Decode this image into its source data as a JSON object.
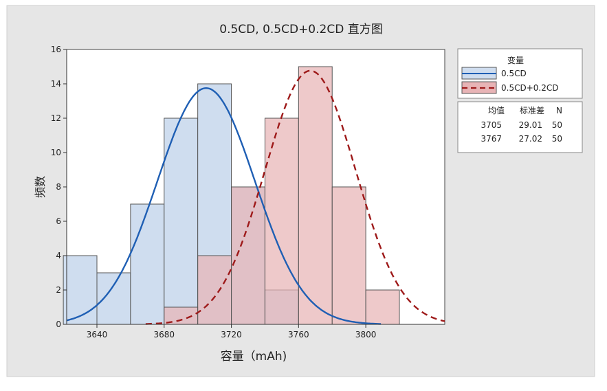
{
  "chart_data": {
    "type": "bar",
    "title": "0.5CD, 0.5CD+0.2CD 直方图",
    "xlabel": "容量（mAh)",
    "ylabel": "频数",
    "xlim": [
      3622,
      3847
    ],
    "ylim": [
      0,
      16
    ],
    "xticks": [
      3640,
      3680,
      3720,
      3760,
      3800
    ],
    "yticks": [
      0,
      2,
      4,
      6,
      8,
      10,
      12,
      14,
      16
    ],
    "bin_width": 20,
    "series": [
      {
        "name": "0.5CD",
        "color": "#1f5fb4",
        "fill": "#cfddef",
        "line_style": "solid",
        "bins": [
          {
            "x": 3630,
            "count": 4
          },
          {
            "x": 3650,
            "count": 3
          },
          {
            "x": 3670,
            "count": 7
          },
          {
            "x": 3690,
            "count": 12
          },
          {
            "x": 3710,
            "count": 14
          },
          {
            "x": 3730,
            "count": 8
          },
          {
            "x": 3750,
            "count": 2
          }
        ],
        "mean": 3705,
        "stdev": 29.01,
        "n": 50
      },
      {
        "name": "0.5CD+0.2CD",
        "color": "#9e1a1a",
        "fill": "#e8b4b6",
        "line_style": "dashed",
        "bins": [
          {
            "x": 3690,
            "count": 1
          },
          {
            "x": 3710,
            "count": 4
          },
          {
            "x": 3730,
            "count": 8
          },
          {
            "x": 3750,
            "count": 12
          },
          {
            "x": 3770,
            "count": 15
          },
          {
            "x": 3790,
            "count": 8
          },
          {
            "x": 3810,
            "count": 2
          }
        ],
        "mean": 3767,
        "stdev": 27.02,
        "n": 50
      }
    ],
    "legend": {
      "title": "变量",
      "position": "right"
    },
    "stats_table": {
      "headers": [
        "均值",
        "标准差",
        "N"
      ],
      "rows": [
        [
          "3705",
          "29.01",
          "50"
        ],
        [
          "3767",
          "27.02",
          "50"
        ]
      ]
    },
    "grid": false
  }
}
